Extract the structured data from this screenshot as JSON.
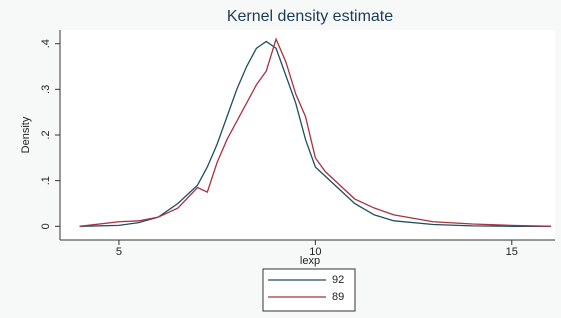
{
  "chart_data": {
    "type": "line",
    "title": "Kernel density estimate",
    "xlabel": "lexp",
    "ylabel": "Density",
    "x": [
      4,
      5,
      5.5,
      6,
      6.5,
      7,
      7.25,
      7.5,
      7.75,
      8,
      8.25,
      8.5,
      8.75,
      9,
      9.25,
      9.5,
      9.75,
      10,
      10.25,
      10.5,
      11,
      11.5,
      12,
      13,
      14,
      15,
      16
    ],
    "series": [
      {
        "name": "92",
        "color": "#1f4e5f",
        "values": [
          0,
          0.002,
          0.008,
          0.02,
          0.05,
          0.09,
          0.13,
          0.18,
          0.24,
          0.3,
          0.35,
          0.39,
          0.405,
          0.39,
          0.33,
          0.27,
          0.19,
          0.13,
          0.11,
          0.09,
          0.05,
          0.025,
          0.012,
          0.004,
          0.001,
          0,
          0
        ]
      },
      {
        "name": "89",
        "color": "#a83240",
        "values": [
          0,
          0.01,
          0.012,
          0.02,
          0.04,
          0.085,
          0.075,
          0.14,
          0.19,
          0.23,
          0.27,
          0.31,
          0.34,
          0.41,
          0.36,
          0.29,
          0.24,
          0.15,
          0.12,
          0.1,
          0.06,
          0.04,
          0.025,
          0.01,
          0.005,
          0.002,
          0
        ]
      }
    ],
    "xlim": [
      3.5,
      16.1
    ],
    "xticks": [
      5,
      10,
      15
    ],
    "ylim": [
      -0.03,
      0.43
    ],
    "yticks": [
      0,
      {
        "value": 0.1,
        "label": ".1"
      },
      {
        "value": 0.2,
        "label": ".2"
      },
      {
        "value": 0.3,
        "label": ".3"
      },
      {
        "value": 0.4,
        "label": ".4"
      }
    ],
    "grid": false,
    "legend": "bottom"
  }
}
